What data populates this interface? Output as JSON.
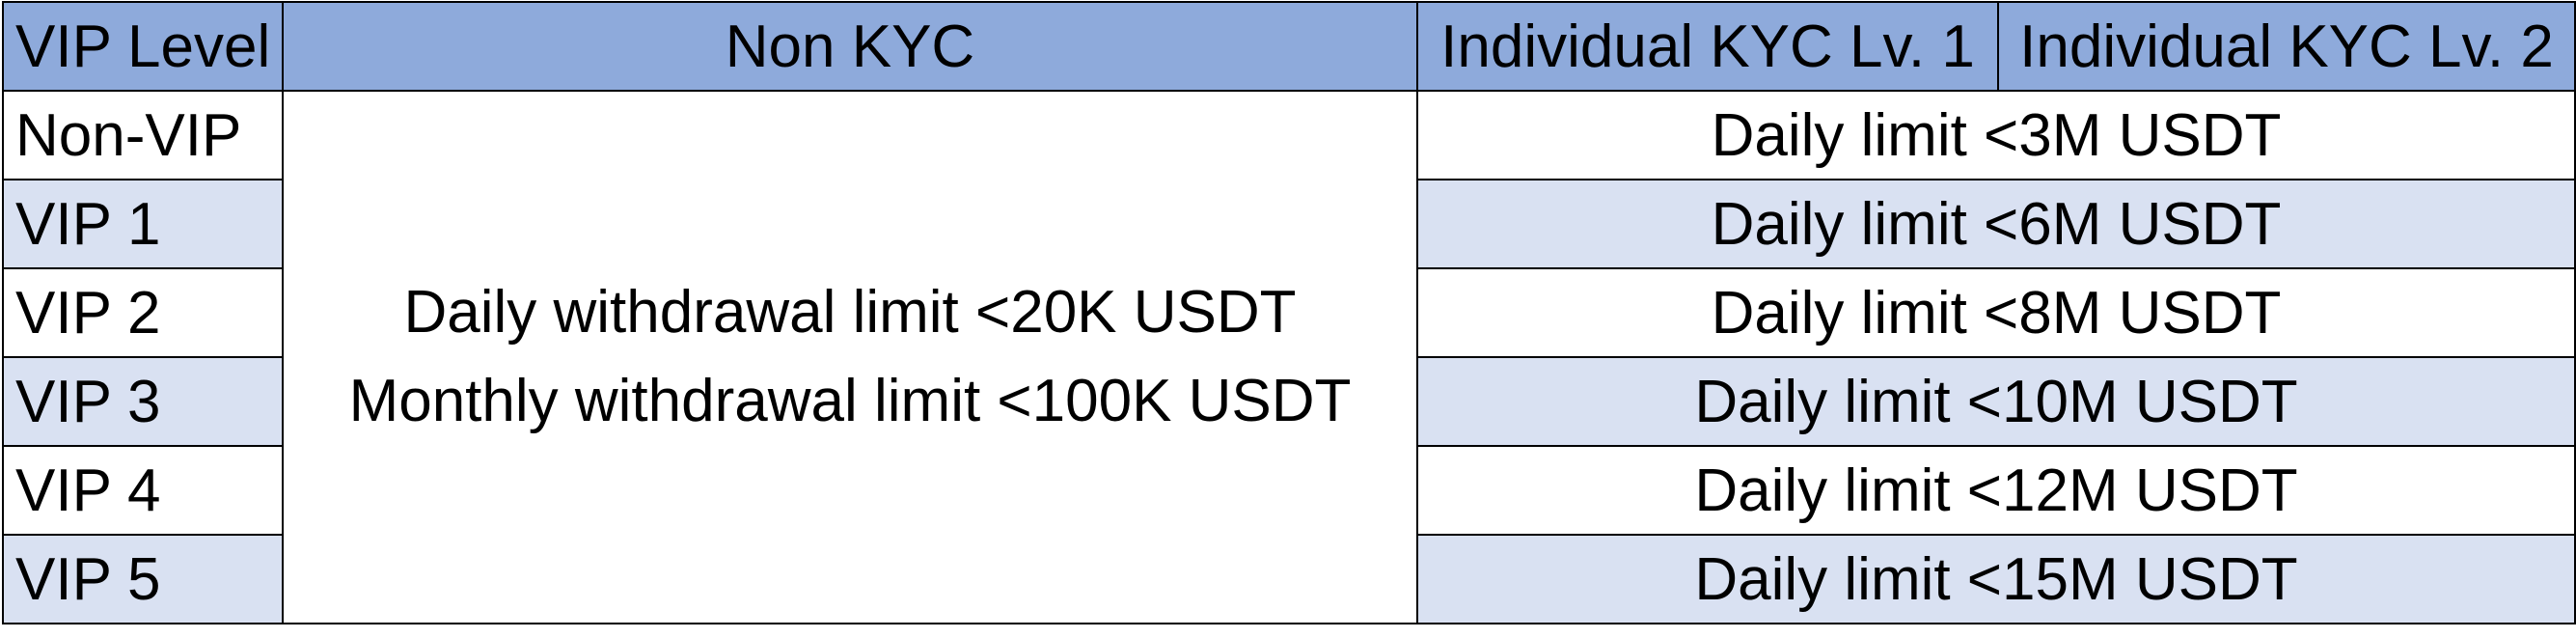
{
  "header": {
    "col1": "VIP Level",
    "col2": "Non KYC",
    "col3": "Individual KYC Lv. 1",
    "col4": "Individual KYC Lv. 2"
  },
  "non_kyc": {
    "line1": "Daily withdrawal limit <20K USDT",
    "line2": "Monthly withdrawal limit <100K USDT"
  },
  "rows": [
    {
      "level": "Non-VIP",
      "kyc_limit": "Daily limit <3M USDT"
    },
    {
      "level": "VIP 1",
      "kyc_limit": "Daily limit <6M USDT"
    },
    {
      "level": "VIP 2",
      "kyc_limit": "Daily limit <8M USDT"
    },
    {
      "level": "VIP 3",
      "kyc_limit": "Daily limit <10M USDT"
    },
    {
      "level": "VIP 4",
      "kyc_limit": "Daily limit <12M USDT"
    },
    {
      "level": "VIP 5",
      "kyc_limit": "Daily limit <15M USDT"
    }
  ],
  "colors": {
    "header_bg": "#8eaadb",
    "band_bg": "#d9e1f2",
    "border": "#000000"
  }
}
